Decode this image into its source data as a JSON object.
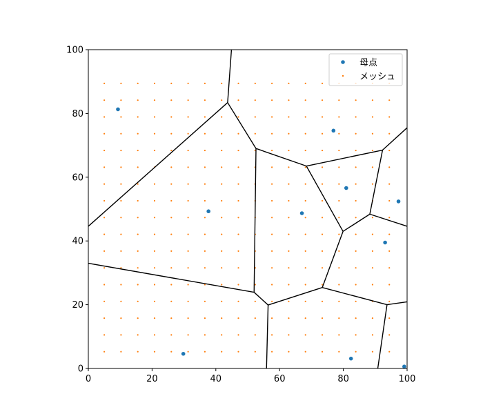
{
  "chart_data": {
    "type": "scatter",
    "xlim": [
      0,
      100
    ],
    "ylim": [
      0,
      100
    ],
    "x_ticks": [
      0,
      20,
      40,
      60,
      80,
      100
    ],
    "y_ticks": [
      0,
      20,
      40,
      60,
      80,
      100
    ],
    "x_tick_labels": [
      "0",
      "20",
      "40",
      "60",
      "80",
      "100"
    ],
    "y_tick_labels": [
      "0",
      "20",
      "40",
      "60",
      "80",
      "100"
    ],
    "grid": false,
    "legend_position": "top-right",
    "aspect": "equal",
    "series": [
      {
        "name": "母点",
        "kind": "point",
        "color": "#1f77b4",
        "points": [
          [
            9.3,
            81.3
          ],
          [
            29.8,
            4.6
          ],
          [
            37.7,
            49.3
          ],
          [
            67.0,
            48.7
          ],
          [
            76.9,
            74.6
          ],
          [
            80.9,
            56.6
          ],
          [
            82.4,
            3.1
          ],
          [
            93.1,
            39.5
          ],
          [
            97.3,
            52.4
          ],
          [
            99.1,
            0.6
          ]
        ]
      },
      {
        "name": "メッシュ",
        "kind": "mesh",
        "color": "#ff7f0e",
        "x_start": 5,
        "x_step": 5.26,
        "x_count": 18,
        "y_start": 5.26,
        "y_step": 5.26,
        "y_count": 17
      }
    ],
    "voronoi_edges": [
      [
        [
          44.9,
          100
        ],
        [
          43.7,
          83.4
        ]
      ],
      [
        [
          43.7,
          83.4
        ],
        [
          0,
          44.6
        ]
      ],
      [
        [
          43.7,
          83.4
        ],
        [
          52.6,
          69.0
        ]
      ],
      [
        [
          52.6,
          69.0
        ],
        [
          68.4,
          63.5
        ]
      ],
      [
        [
          68.4,
          63.5
        ],
        [
          92.3,
          68.5
        ]
      ],
      [
        [
          92.3,
          68.5
        ],
        [
          100,
          75.5
        ]
      ],
      [
        [
          92.3,
          68.5
        ],
        [
          88.3,
          48.4
        ]
      ],
      [
        [
          88.3,
          48.4
        ],
        [
          100,
          44.6
        ]
      ],
      [
        [
          88.3,
          48.4
        ],
        [
          79.9,
          43.0
        ]
      ],
      [
        [
          79.9,
          43.0
        ],
        [
          68.4,
          63.5
        ]
      ],
      [
        [
          52.6,
          69.0
        ],
        [
          52.0,
          23.9
        ]
      ],
      [
        [
          52.0,
          23.9
        ],
        [
          0,
          33.0
        ]
      ],
      [
        [
          52.0,
          23.9
        ],
        [
          56.4,
          19.9
        ]
      ],
      [
        [
          56.4,
          19.9
        ],
        [
          73.4,
          25.4
        ]
      ],
      [
        [
          73.4,
          25.4
        ],
        [
          79.9,
          43.0
        ]
      ],
      [
        [
          73.4,
          25.4
        ],
        [
          93.7,
          20.0
        ]
      ],
      [
        [
          93.7,
          20.0
        ],
        [
          100,
          20.9
        ]
      ],
      [
        [
          93.7,
          20.0
        ],
        [
          90.8,
          0
        ]
      ],
      [
        [
          56.4,
          19.9
        ],
        [
          55.9,
          0
        ]
      ]
    ]
  }
}
